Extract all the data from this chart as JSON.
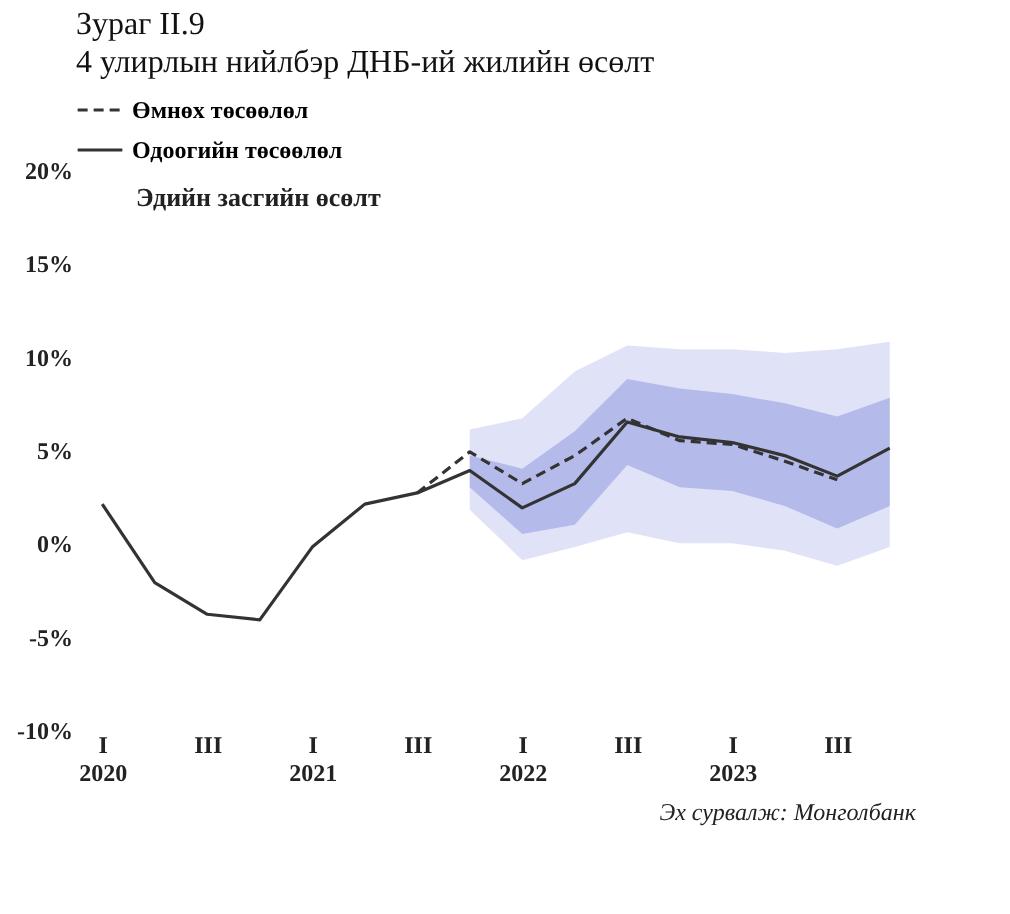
{
  "chart_data": {
    "type": "line",
    "title": "Зураг II.9",
    "subtitle": "4 улирлын нийлбэр ДНБ-ий жилийн өсөлт",
    "ylabel": "Эдийн засгийн өсөлт",
    "categories": [
      "I\n2020",
      null,
      "III",
      null,
      "I\n2021",
      null,
      "III",
      null,
      "I\n2022",
      null,
      "III",
      null,
      "I\n2023",
      null,
      "III",
      null
    ],
    "series": [
      {
        "name": "Өмнөх төсөөлөл",
        "color": "#333333",
        "line_style": "dashed",
        "values": [
          null,
          null,
          null,
          null,
          null,
          null,
          2.7,
          4.9,
          3.2,
          4.7,
          6.7,
          5.5,
          5.3,
          4.4,
          3.4,
          null
        ]
      },
      {
        "name": "Одоогийн төсөөлөл",
        "color": "#333333",
        "line_style": "solid",
        "values": [
          2.1,
          -2.1,
          -3.8,
          -4.1,
          -0.2,
          2.1,
          2.7,
          3.9,
          1.9,
          3.2,
          6.5,
          5.7,
          5.4,
          4.7,
          3.6,
          5.1
        ],
        "lower": [
          null,
          null,
          null,
          null,
          null,
          null,
          null,
          1.8,
          -0.9,
          -0.2,
          0.6,
          0.0,
          0.0,
          -0.4,
          -1.2,
          -0.2
        ],
        "upper": [
          null,
          null,
          null,
          null,
          null,
          null,
          null,
          6.1,
          6.7,
          9.2,
          10.6,
          10.4,
          10.4,
          10.2,
          10.4,
          10.8
        ]
      },
      {
        "color": "#a9b0e6",
        "values": [
          null,
          null,
          null,
          null,
          null,
          null,
          null,
          null,
          null,
          null,
          null,
          null,
          null,
          null,
          null,
          null
        ],
        "lower": [
          null,
          null,
          null,
          null,
          null,
          null,
          null,
          3.0,
          0.5,
          1.0,
          4.2,
          3.0,
          2.8,
          2.0,
          0.8,
          2.0
        ],
        "upper": [
          null,
          null,
          null,
          null,
          null,
          null,
          null,
          4.7,
          4.0,
          6.0,
          8.8,
          8.3,
          8.0,
          7.5,
          6.8,
          7.8
        ]
      }
    ],
    "ylim": [
      -10,
      20
    ],
    "yticks": [
      {
        "value": -10,
        "label": "-10%"
      },
      {
        "value": -5,
        "label": "-5%"
      },
      {
        "value": 0,
        "label": "0%"
      },
      {
        "value": 5,
        "label": "5%"
      },
      {
        "value": 10,
        "label": "10%"
      },
      {
        "value": 15,
        "label": "15%"
      },
      {
        "value": 20,
        "label": "20%"
      }
    ],
    "grid": false,
    "legend": "top",
    "marker": "none",
    "annotations": [
      "Эх сурвалж: Монголбанк"
    ]
  }
}
